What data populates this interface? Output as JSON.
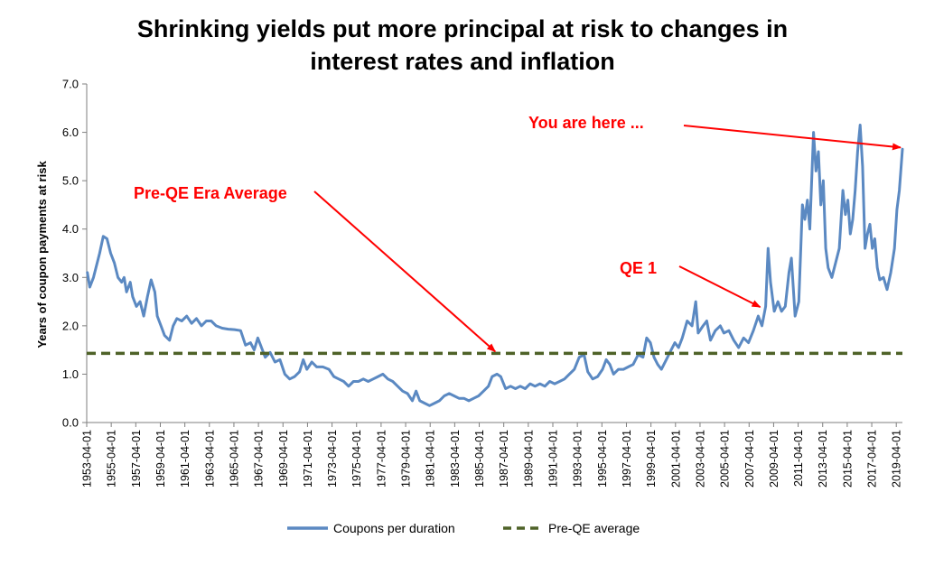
{
  "colors": {
    "series": "#5b89c2",
    "average": "#4f6228",
    "annotation": "#ff0000",
    "axis": "#7f7f7f"
  },
  "chart_data": {
    "type": "line",
    "title_line1": "Shrinking yields put more principal at risk to changes in",
    "title_line2": "interest rates and inflation",
    "xlabel": "",
    "ylabel": "Years of coupon payments at risk",
    "ylim": [
      0,
      7
    ],
    "yticks": [
      "0.0",
      "1.0",
      "2.0",
      "3.0",
      "4.0",
      "5.0",
      "6.0",
      "7.0"
    ],
    "xlim": [
      1953.25,
      2019.75
    ],
    "grid": false,
    "legend_position": "bottom",
    "xticks": [
      {
        "x": 1953.25,
        "label": "1953-04-01"
      },
      {
        "x": 1955.25,
        "label": "1955-04-01"
      },
      {
        "x": 1957.25,
        "label": "1957-04-01"
      },
      {
        "x": 1959.25,
        "label": "1959-04-01"
      },
      {
        "x": 1961.25,
        "label": "1961-04-01"
      },
      {
        "x": 1963.25,
        "label": "1963-04-01"
      },
      {
        "x": 1965.25,
        "label": "1965-04-01"
      },
      {
        "x": 1967.25,
        "label": "1967-04-01"
      },
      {
        "x": 1969.25,
        "label": "1969-04-01"
      },
      {
        "x": 1971.25,
        "label": "1971-04-01"
      },
      {
        "x": 1973.25,
        "label": "1973-04-01"
      },
      {
        "x": 1975.25,
        "label": "1975-04-01"
      },
      {
        "x": 1977.25,
        "label": "1977-04-01"
      },
      {
        "x": 1979.25,
        "label": "1979-04-01"
      },
      {
        "x": 1981.25,
        "label": "1981-04-01"
      },
      {
        "x": 1983.25,
        "label": "1983-04-01"
      },
      {
        "x": 1985.25,
        "label": "1985-04-01"
      },
      {
        "x": 1987.25,
        "label": "1987-04-01"
      },
      {
        "x": 1989.25,
        "label": "1989-04-01"
      },
      {
        "x": 1991.25,
        "label": "1991-04-01"
      },
      {
        "x": 1993.25,
        "label": "1993-04-01"
      },
      {
        "x": 1995.25,
        "label": "1995-04-01"
      },
      {
        "x": 1997.25,
        "label": "1997-04-01"
      },
      {
        "x": 1999.25,
        "label": "1999-04-01"
      },
      {
        "x": 2001.25,
        "label": "2001-04-01"
      },
      {
        "x": 2003.25,
        "label": "2003-04-01"
      },
      {
        "x": 2005.25,
        "label": "2005-04-01"
      },
      {
        "x": 2007.25,
        "label": "2007-04-01"
      },
      {
        "x": 2009.25,
        "label": "2009-04-01"
      },
      {
        "x": 2011.25,
        "label": "2011-04-01"
      },
      {
        "x": 2013.25,
        "label": "2013-04-01"
      },
      {
        "x": 2015.25,
        "label": "2015-04-01"
      },
      {
        "x": 2017.25,
        "label": "2017-04-01"
      },
      {
        "x": 2019.25,
        "label": "2019-04-01"
      }
    ],
    "series": [
      {
        "name": "Coupons per duration",
        "style": "solid",
        "points": [
          [
            1953.3,
            3.1
          ],
          [
            1953.5,
            2.8
          ],
          [
            1953.8,
            3.0
          ],
          [
            1954.0,
            3.2
          ],
          [
            1954.3,
            3.5
          ],
          [
            1954.6,
            3.85
          ],
          [
            1954.9,
            3.8
          ],
          [
            1955.2,
            3.5
          ],
          [
            1955.5,
            3.3
          ],
          [
            1955.8,
            3.0
          ],
          [
            1956.1,
            2.9
          ],
          [
            1956.3,
            3.0
          ],
          [
            1956.5,
            2.7
          ],
          [
            1956.8,
            2.9
          ],
          [
            1957.0,
            2.6
          ],
          [
            1957.3,
            2.4
          ],
          [
            1957.6,
            2.5
          ],
          [
            1957.9,
            2.2
          ],
          [
            1958.2,
            2.6
          ],
          [
            1958.5,
            2.95
          ],
          [
            1958.8,
            2.7
          ],
          [
            1959.0,
            2.2
          ],
          [
            1959.3,
            2.0
          ],
          [
            1959.6,
            1.8
          ],
          [
            1960.0,
            1.7
          ],
          [
            1960.3,
            2.0
          ],
          [
            1960.6,
            2.15
          ],
          [
            1961.0,
            2.1
          ],
          [
            1961.4,
            2.2
          ],
          [
            1961.8,
            2.05
          ],
          [
            1962.2,
            2.15
          ],
          [
            1962.6,
            2.0
          ],
          [
            1963.0,
            2.1
          ],
          [
            1963.4,
            2.1
          ],
          [
            1963.8,
            2.0
          ],
          [
            1964.3,
            1.95
          ],
          [
            1964.8,
            1.93
          ],
          [
            1965.3,
            1.92
          ],
          [
            1965.8,
            1.9
          ],
          [
            1966.2,
            1.6
          ],
          [
            1966.6,
            1.65
          ],
          [
            1966.9,
            1.5
          ],
          [
            1967.2,
            1.75
          ],
          [
            1967.5,
            1.55
          ],
          [
            1967.8,
            1.35
          ],
          [
            1968.2,
            1.45
          ],
          [
            1968.6,
            1.25
          ],
          [
            1969.0,
            1.3
          ],
          [
            1969.4,
            1.0
          ],
          [
            1969.8,
            0.9
          ],
          [
            1970.2,
            0.95
          ],
          [
            1970.6,
            1.05
          ],
          [
            1970.9,
            1.3
          ],
          [
            1971.2,
            1.1
          ],
          [
            1971.6,
            1.25
          ],
          [
            1972.0,
            1.15
          ],
          [
            1972.5,
            1.15
          ],
          [
            1973.0,
            1.1
          ],
          [
            1973.4,
            0.95
          ],
          [
            1973.8,
            0.9
          ],
          [
            1974.2,
            0.85
          ],
          [
            1974.6,
            0.75
          ],
          [
            1975.0,
            0.85
          ],
          [
            1975.4,
            0.85
          ],
          [
            1975.8,
            0.9
          ],
          [
            1976.2,
            0.85
          ],
          [
            1976.6,
            0.9
          ],
          [
            1977.0,
            0.95
          ],
          [
            1977.4,
            1.0
          ],
          [
            1977.8,
            0.9
          ],
          [
            1978.2,
            0.85
          ],
          [
            1978.6,
            0.75
          ],
          [
            1979.0,
            0.65
          ],
          [
            1979.4,
            0.6
          ],
          [
            1979.8,
            0.45
          ],
          [
            1980.1,
            0.65
          ],
          [
            1980.4,
            0.45
          ],
          [
            1980.8,
            0.4
          ],
          [
            1981.2,
            0.35
          ],
          [
            1981.6,
            0.4
          ],
          [
            1982.0,
            0.45
          ],
          [
            1982.4,
            0.55
          ],
          [
            1982.8,
            0.6
          ],
          [
            1983.2,
            0.55
          ],
          [
            1983.6,
            0.5
          ],
          [
            1984.0,
            0.5
          ],
          [
            1984.4,
            0.45
          ],
          [
            1984.8,
            0.5
          ],
          [
            1985.2,
            0.55
          ],
          [
            1985.6,
            0.65
          ],
          [
            1986.0,
            0.75
          ],
          [
            1986.3,
            0.95
          ],
          [
            1986.7,
            1.0
          ],
          [
            1987.0,
            0.95
          ],
          [
            1987.4,
            0.7
          ],
          [
            1987.8,
            0.75
          ],
          [
            1988.2,
            0.7
          ],
          [
            1988.6,
            0.75
          ],
          [
            1989.0,
            0.7
          ],
          [
            1989.4,
            0.8
          ],
          [
            1989.8,
            0.75
          ],
          [
            1990.2,
            0.8
          ],
          [
            1990.6,
            0.75
          ],
          [
            1991.0,
            0.85
          ],
          [
            1991.4,
            0.8
          ],
          [
            1991.8,
            0.85
          ],
          [
            1992.2,
            0.9
          ],
          [
            1992.6,
            1.0
          ],
          [
            1993.0,
            1.1
          ],
          [
            1993.4,
            1.35
          ],
          [
            1993.8,
            1.4
          ],
          [
            1994.1,
            1.05
          ],
          [
            1994.5,
            0.9
          ],
          [
            1994.9,
            0.95
          ],
          [
            1995.3,
            1.1
          ],
          [
            1995.6,
            1.3
          ],
          [
            1995.9,
            1.2
          ],
          [
            1996.2,
            1.0
          ],
          [
            1996.6,
            1.1
          ],
          [
            1997.0,
            1.1
          ],
          [
            1997.4,
            1.15
          ],
          [
            1997.8,
            1.2
          ],
          [
            1998.2,
            1.4
          ],
          [
            1998.6,
            1.35
          ],
          [
            1998.9,
            1.75
          ],
          [
            1999.2,
            1.65
          ],
          [
            1999.5,
            1.35
          ],
          [
            1999.8,
            1.2
          ],
          [
            2000.1,
            1.1
          ],
          [
            2000.5,
            1.3
          ],
          [
            2000.9,
            1.5
          ],
          [
            2001.2,
            1.65
          ],
          [
            2001.5,
            1.55
          ],
          [
            2001.8,
            1.75
          ],
          [
            2002.2,
            2.1
          ],
          [
            2002.6,
            2.0
          ],
          [
            2002.9,
            2.5
          ],
          [
            2003.1,
            1.85
          ],
          [
            2003.5,
            2.0
          ],
          [
            2003.8,
            2.1
          ],
          [
            2004.1,
            1.7
          ],
          [
            2004.5,
            1.9
          ],
          [
            2004.9,
            2.0
          ],
          [
            2005.2,
            1.85
          ],
          [
            2005.6,
            1.9
          ],
          [
            2006.0,
            1.7
          ],
          [
            2006.4,
            1.55
          ],
          [
            2006.8,
            1.75
          ],
          [
            2007.2,
            1.65
          ],
          [
            2007.6,
            1.9
          ],
          [
            2008.0,
            2.2
          ],
          [
            2008.3,
            2.0
          ],
          [
            2008.6,
            2.4
          ],
          [
            2008.8,
            3.6
          ],
          [
            2009.0,
            2.9
          ],
          [
            2009.3,
            2.3
          ],
          [
            2009.6,
            2.5
          ],
          [
            2009.9,
            2.3
          ],
          [
            2010.2,
            2.4
          ],
          [
            2010.5,
            3.1
          ],
          [
            2010.7,
            3.4
          ],
          [
            2011.0,
            2.2
          ],
          [
            2011.3,
            2.5
          ],
          [
            2011.6,
            4.5
          ],
          [
            2011.8,
            4.2
          ],
          [
            2012.0,
            4.6
          ],
          [
            2012.2,
            4.0
          ],
          [
            2012.5,
            6.0
          ],
          [
            2012.7,
            5.2
          ],
          [
            2012.9,
            5.6
          ],
          [
            2013.1,
            4.5
          ],
          [
            2013.3,
            5.0
          ],
          [
            2013.5,
            3.6
          ],
          [
            2013.7,
            3.2
          ],
          [
            2014.0,
            3.0
          ],
          [
            2014.3,
            3.3
          ],
          [
            2014.6,
            3.6
          ],
          [
            2014.9,
            4.8
          ],
          [
            2015.1,
            4.3
          ],
          [
            2015.3,
            4.6
          ],
          [
            2015.5,
            3.9
          ],
          [
            2015.7,
            4.2
          ],
          [
            2015.9,
            4.8
          ],
          [
            2016.1,
            5.6
          ],
          [
            2016.3,
            6.15
          ],
          [
            2016.5,
            5.3
          ],
          [
            2016.7,
            3.6
          ],
          [
            2016.9,
            3.9
          ],
          [
            2017.1,
            4.1
          ],
          [
            2017.3,
            3.6
          ],
          [
            2017.5,
            3.8
          ],
          [
            2017.7,
            3.2
          ],
          [
            2017.9,
            2.95
          ],
          [
            2018.2,
            3.0
          ],
          [
            2018.5,
            2.75
          ],
          [
            2018.8,
            3.1
          ],
          [
            2019.1,
            3.6
          ],
          [
            2019.3,
            4.4
          ],
          [
            2019.5,
            4.8
          ],
          [
            2019.75,
            5.65
          ]
        ]
      },
      {
        "name": "Pre-QE average",
        "style": "dashed",
        "points": [
          [
            1953.25,
            1.43
          ],
          [
            2019.75,
            1.43
          ]
        ]
      }
    ],
    "annotations": [
      {
        "text": "Pre-QE Era Average",
        "target": [
          1986.7,
          1.43
        ]
      },
      {
        "text": "QE 1",
        "target": [
          2008.3,
          2.35
        ]
      },
      {
        "text": "You are here ...",
        "target": [
          2019.75,
          5.65
        ]
      }
    ]
  }
}
